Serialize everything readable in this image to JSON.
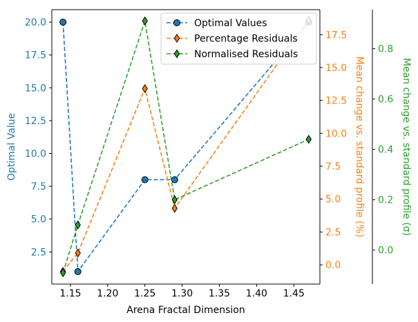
{
  "chart_data": {
    "type": "line",
    "xlabel": "Arena Fractal Dimension",
    "x": [
      1.14,
      1.16,
      1.25,
      1.29,
      1.47
    ],
    "xlim": [
      1.125,
      1.485
    ],
    "xticks": [
      "1.15",
      "1.20",
      "1.25",
      "1.30",
      "1.35",
      "1.40",
      "1.45"
    ],
    "axes": [
      {
        "id": "left",
        "label": "Optimal Value",
        "color": "#1f77b4",
        "ylim": [
          0.05,
          20.95
        ],
        "ticks": [
          "2.5",
          "5.0",
          "7.5",
          "10.0",
          "12.5",
          "15.0",
          "17.5",
          "20.0"
        ]
      },
      {
        "id": "right1",
        "label": "Mean change vs. standard profile (%)",
        "color": "#ff7f0e",
        "ylim": [
          -1.46,
          19.4
        ],
        "ticks": [
          "0.0",
          "2.5",
          "5.0",
          "7.5",
          "10.0",
          "12.5",
          "15.0",
          "17.5"
        ]
      },
      {
        "id": "right2",
        "label": "Mean change vs. standard profile (σ)",
        "color": "#2ca02c",
        "ylim": [
          -0.135,
          0.955
        ],
        "ticks": [
          "0.0",
          "0.2",
          "0.4",
          "0.6",
          "0.8"
        ]
      }
    ],
    "series": [
      {
        "name": "Optimal Values",
        "axis": "left",
        "color": "#1f77b4",
        "marker": "circle",
        "values": [
          20.0,
          1.0,
          8.0,
          8.0,
          20.0
        ]
      },
      {
        "name": "Percentage Residuals",
        "axis": "right1",
        "color": "#ff7f0e",
        "marker": "diamond",
        "values": [
          -0.5,
          0.9,
          13.4,
          4.3,
          18.6
        ]
      },
      {
        "name": "Normalised Residuals",
        "axis": "right2",
        "color": "#2ca02c",
        "marker": "diamond",
        "values": [
          -0.09,
          0.1,
          0.91,
          0.2,
          0.44
        ]
      }
    ],
    "legend": "top-right",
    "grid": false
  }
}
